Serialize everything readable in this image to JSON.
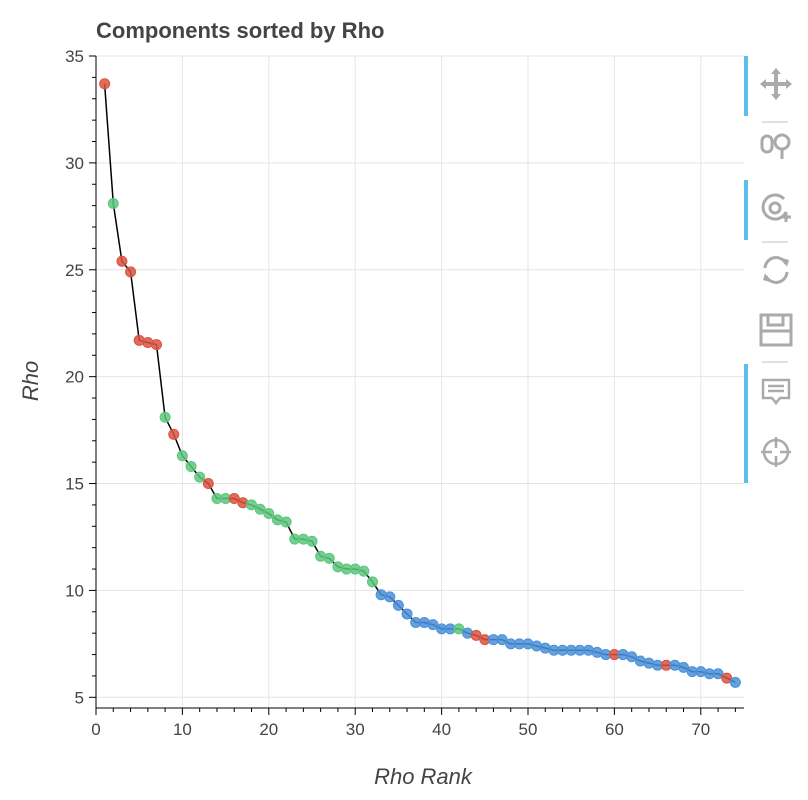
{
  "title": "Components sorted by Rho",
  "chart_data": {
    "type": "scatter",
    "title": "Components sorted by Rho",
    "xlabel": "Rho Rank",
    "ylabel": "Rho",
    "xlim": [
      0,
      75
    ],
    "ylim": [
      4.5,
      35
    ],
    "x_ticks": [
      0,
      10,
      20,
      30,
      40,
      50,
      60,
      70
    ],
    "y_ticks": [
      5,
      10,
      15,
      20,
      25,
      30,
      35
    ],
    "grid": true,
    "line_color": "#000000",
    "colors": {
      "green": "#5cc77c",
      "red": "#d9533f",
      "blue": "#4a90d9"
    },
    "points": [
      {
        "x": 1,
        "y": 33.7,
        "c": "red"
      },
      {
        "x": 2,
        "y": 28.1,
        "c": "green"
      },
      {
        "x": 3,
        "y": 25.4,
        "c": "red"
      },
      {
        "x": 4,
        "y": 24.9,
        "c": "red"
      },
      {
        "x": 5,
        "y": 21.7,
        "c": "red"
      },
      {
        "x": 6,
        "y": 21.6,
        "c": "red"
      },
      {
        "x": 7,
        "y": 21.5,
        "c": "red"
      },
      {
        "x": 8,
        "y": 18.1,
        "c": "green"
      },
      {
        "x": 9,
        "y": 17.3,
        "c": "red"
      },
      {
        "x": 10,
        "y": 16.3,
        "c": "green"
      },
      {
        "x": 11,
        "y": 15.8,
        "c": "green"
      },
      {
        "x": 12,
        "y": 15.3,
        "c": "green"
      },
      {
        "x": 13,
        "y": 15.0,
        "c": "red"
      },
      {
        "x": 14,
        "y": 14.3,
        "c": "green"
      },
      {
        "x": 15,
        "y": 14.3,
        "c": "green"
      },
      {
        "x": 16,
        "y": 14.3,
        "c": "red"
      },
      {
        "x": 17,
        "y": 14.1,
        "c": "red"
      },
      {
        "x": 18,
        "y": 14.0,
        "c": "green"
      },
      {
        "x": 19,
        "y": 13.8,
        "c": "green"
      },
      {
        "x": 20,
        "y": 13.6,
        "c": "green"
      },
      {
        "x": 21,
        "y": 13.3,
        "c": "green"
      },
      {
        "x": 22,
        "y": 13.2,
        "c": "green"
      },
      {
        "x": 23,
        "y": 12.4,
        "c": "green"
      },
      {
        "x": 24,
        "y": 12.4,
        "c": "green"
      },
      {
        "x": 25,
        "y": 12.3,
        "c": "green"
      },
      {
        "x": 26,
        "y": 11.6,
        "c": "green"
      },
      {
        "x": 27,
        "y": 11.5,
        "c": "green"
      },
      {
        "x": 28,
        "y": 11.1,
        "c": "green"
      },
      {
        "x": 29,
        "y": 11.0,
        "c": "green"
      },
      {
        "x": 30,
        "y": 11.0,
        "c": "green"
      },
      {
        "x": 31,
        "y": 10.9,
        "c": "green"
      },
      {
        "x": 32,
        "y": 10.4,
        "c": "green"
      },
      {
        "x": 33,
        "y": 9.8,
        "c": "blue"
      },
      {
        "x": 34,
        "y": 9.7,
        "c": "blue"
      },
      {
        "x": 35,
        "y": 9.3,
        "c": "blue"
      },
      {
        "x": 36,
        "y": 8.9,
        "c": "blue"
      },
      {
        "x": 37,
        "y": 8.5,
        "c": "blue"
      },
      {
        "x": 38,
        "y": 8.5,
        "c": "blue"
      },
      {
        "x": 39,
        "y": 8.4,
        "c": "blue"
      },
      {
        "x": 40,
        "y": 8.2,
        "c": "blue"
      },
      {
        "x": 41,
        "y": 8.2,
        "c": "blue"
      },
      {
        "x": 42,
        "y": 8.2,
        "c": "green"
      },
      {
        "x": 43,
        "y": 8.0,
        "c": "blue"
      },
      {
        "x": 44,
        "y": 7.9,
        "c": "red"
      },
      {
        "x": 45,
        "y": 7.7,
        "c": "red"
      },
      {
        "x": 46,
        "y": 7.7,
        "c": "blue"
      },
      {
        "x": 47,
        "y": 7.7,
        "c": "blue"
      },
      {
        "x": 48,
        "y": 7.5,
        "c": "blue"
      },
      {
        "x": 49,
        "y": 7.5,
        "c": "blue"
      },
      {
        "x": 50,
        "y": 7.5,
        "c": "blue"
      },
      {
        "x": 51,
        "y": 7.4,
        "c": "blue"
      },
      {
        "x": 52,
        "y": 7.3,
        "c": "blue"
      },
      {
        "x": 53,
        "y": 7.2,
        "c": "blue"
      },
      {
        "x": 54,
        "y": 7.2,
        "c": "blue"
      },
      {
        "x": 55,
        "y": 7.2,
        "c": "blue"
      },
      {
        "x": 56,
        "y": 7.2,
        "c": "blue"
      },
      {
        "x": 57,
        "y": 7.2,
        "c": "blue"
      },
      {
        "x": 58,
        "y": 7.1,
        "c": "blue"
      },
      {
        "x": 59,
        "y": 7.0,
        "c": "blue"
      },
      {
        "x": 60,
        "y": 7.0,
        "c": "red"
      },
      {
        "x": 61,
        "y": 7.0,
        "c": "blue"
      },
      {
        "x": 62,
        "y": 6.9,
        "c": "blue"
      },
      {
        "x": 63,
        "y": 6.7,
        "c": "blue"
      },
      {
        "x": 64,
        "y": 6.6,
        "c": "blue"
      },
      {
        "x": 65,
        "y": 6.5,
        "c": "blue"
      },
      {
        "x": 66,
        "y": 6.5,
        "c": "red"
      },
      {
        "x": 67,
        "y": 6.5,
        "c": "blue"
      },
      {
        "x": 68,
        "y": 6.4,
        "c": "blue"
      },
      {
        "x": 69,
        "y": 6.2,
        "c": "blue"
      },
      {
        "x": 70,
        "y": 6.2,
        "c": "blue"
      },
      {
        "x": 71,
        "y": 6.1,
        "c": "blue"
      },
      {
        "x": 72,
        "y": 6.1,
        "c": "blue"
      },
      {
        "x": 73,
        "y": 5.9,
        "c": "red"
      },
      {
        "x": 74,
        "y": 5.7,
        "c": "blue"
      }
    ]
  },
  "toolbar": {
    "accent_color": "#26aae1",
    "tools": [
      {
        "name": "pan-tool",
        "icon": "move-arrows-icon",
        "active": true
      },
      {
        "name": "box-zoom-tool",
        "icon": "box-zoom-icon",
        "active": false
      },
      {
        "name": "wheel-zoom-tool",
        "icon": "wheel-zoom-icon",
        "active": true
      },
      {
        "name": "reset-tool",
        "icon": "reset-icon",
        "active": false
      },
      {
        "name": "save-tool",
        "icon": "save-icon",
        "active": false
      },
      {
        "name": "hover-tool",
        "icon": "hover-tooltip-icon",
        "active": true
      },
      {
        "name": "crosshair-tool",
        "icon": "crosshair-icon",
        "active": false
      }
    ]
  }
}
